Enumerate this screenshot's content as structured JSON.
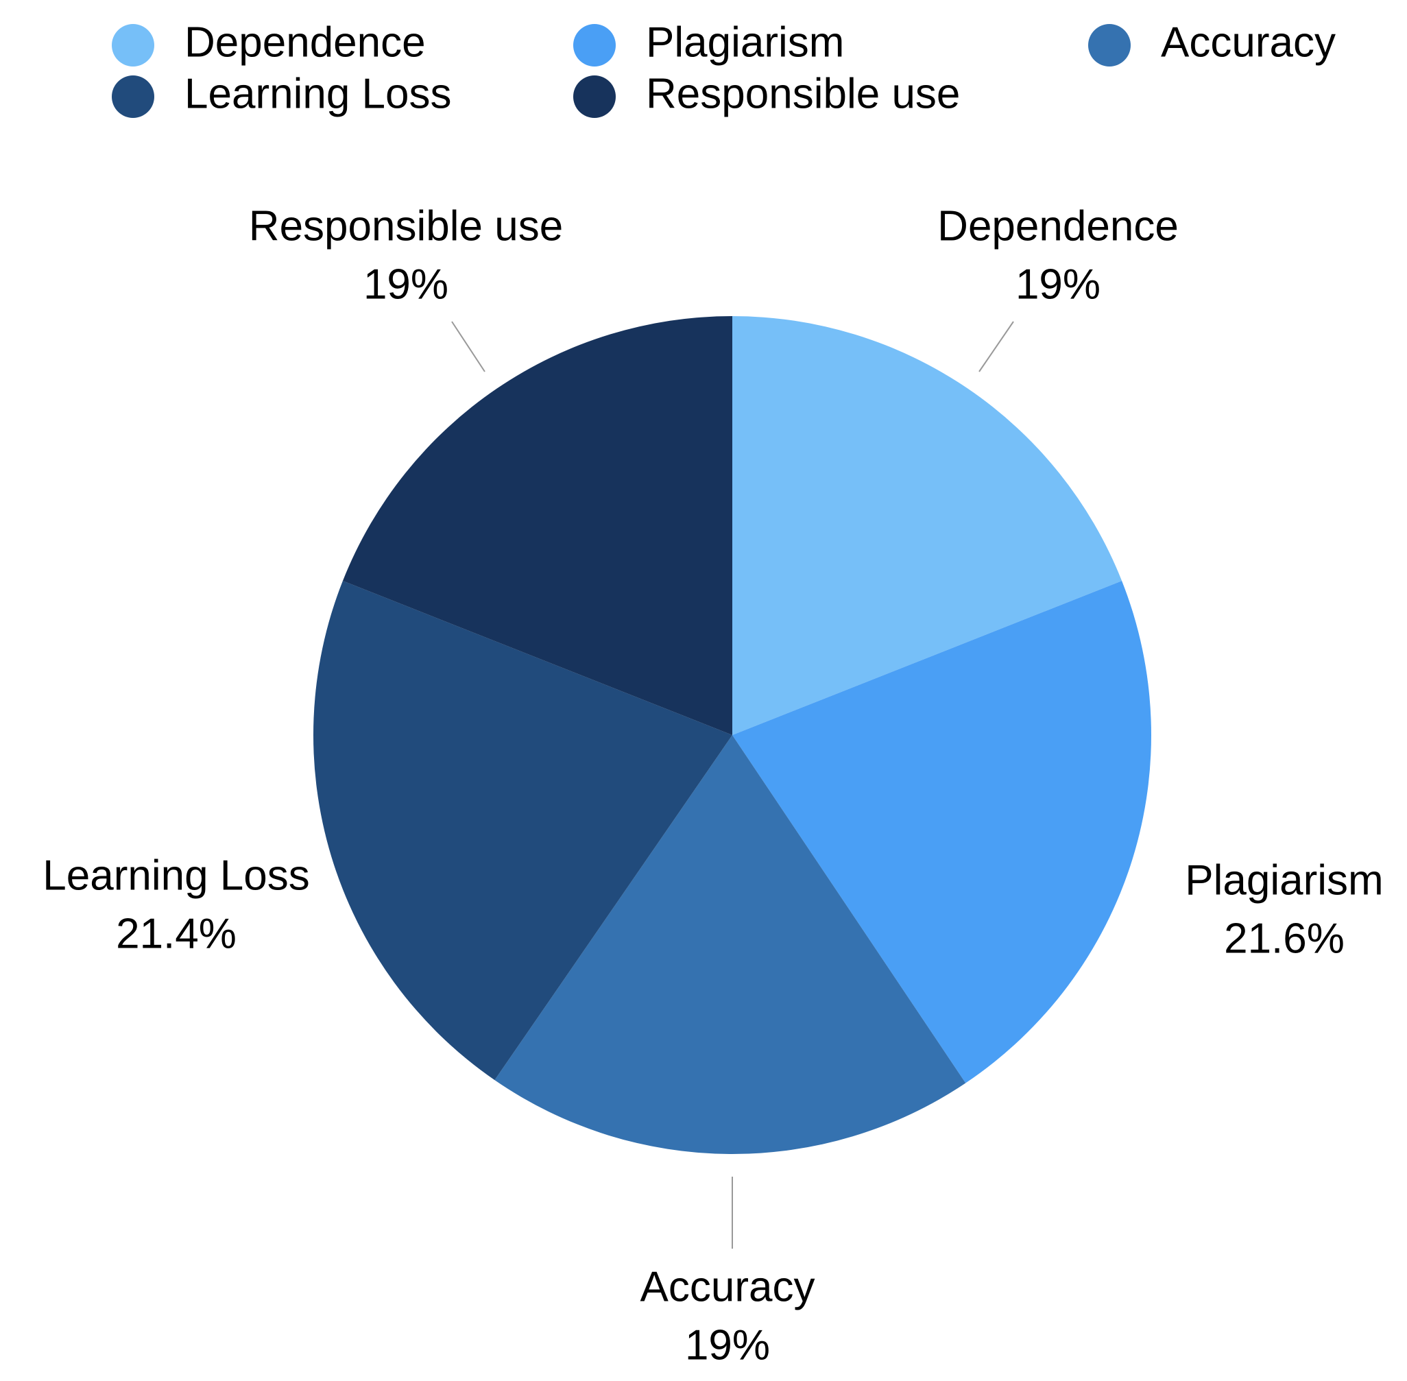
{
  "chart_data": {
    "type": "pie",
    "categories": [
      "Dependence",
      "Plagiarism",
      "Accuracy",
      "Learning Loss",
      "Responsible use"
    ],
    "values": [
      19,
      21.6,
      19,
      21.4,
      19
    ],
    "value_labels": [
      "19%",
      "21.6%",
      "19%",
      "21.4%",
      "19%"
    ],
    "colors": [
      "#76bff8",
      "#4a9ff5",
      "#3572b0",
      "#214b7c",
      "#17335c"
    ],
    "legend": "top"
  }
}
